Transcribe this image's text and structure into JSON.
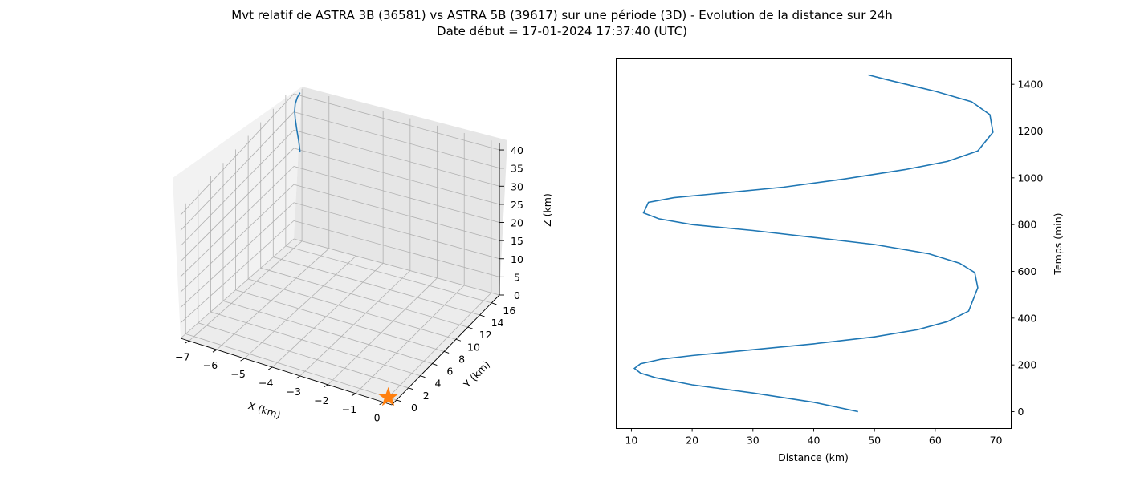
{
  "figure": {
    "title_line_1": "Mvt relatif de ASTRA 3B (36581) vs ASTRA 5B (39617) sur une période (3D) - Evolution de la distance sur 24h",
    "title_line_2": "Date début = 17-01-2024 17:37:40 (UTC)"
  },
  "colors": {
    "trajectory": "#1f77b4",
    "marker": "#ff7f0e"
  },
  "chart_data": [
    {
      "type": "line",
      "projection": "3d",
      "xlabel": "X (km)",
      "ylabel": "Y (km)",
      "zlabel": "Z (km)",
      "xlim": [
        -7.3,
        0.3
      ],
      "ylim": [
        -0.8,
        17.3
      ],
      "zlim": [
        0,
        42
      ],
      "xticks": [
        -7,
        -6,
        -5,
        -4,
        -3,
        -2,
        -1,
        0
      ],
      "yticks": [
        0,
        2,
        4,
        6,
        8,
        10,
        12,
        14,
        16
      ],
      "zticks": [
        0,
        5,
        10,
        15,
        20,
        25,
        30,
        35,
        40
      ],
      "grid": true,
      "series": [
        {
          "x": [
            -7.0,
            -7.05,
            -7.12,
            -7.18,
            -7.2,
            -7.18,
            -7.1,
            -7.0
          ],
          "y": [
            17.0,
            17.0,
            17.0,
            17.0,
            17.0,
            17.0,
            17.0,
            17.0
          ],
          "z": [
            25,
            28,
            31,
            34,
            36,
            38,
            40,
            41.5
          ]
        }
      ],
      "marker": {
        "symbol": "star",
        "x": 0,
        "y": 0,
        "z": 0
      }
    },
    {
      "type": "line",
      "xlabel": "Distance (km)",
      "ylabel": "Temps (min)",
      "xlim": [
        7.5,
        72.5
      ],
      "ylim": [
        -72,
        1512
      ],
      "xticks": [
        10,
        20,
        30,
        40,
        50,
        60,
        70
      ],
      "yticks": [
        0,
        200,
        400,
        600,
        800,
        1000,
        1200,
        1400
      ],
      "grid": false,
      "series": [
        {
          "distance": [
            47.3,
            40.0,
            30.0,
            20.0,
            14.0,
            11.5,
            10.5,
            11.5,
            15.0,
            20.0,
            30.0,
            40.0,
            50.0,
            57.0,
            62.0,
            65.5,
            67.0,
            66.5,
            64.0,
            59.0,
            50.0,
            40.0,
            30.0,
            20.0,
            14.5,
            12.0,
            12.8,
            17.0,
            25.0,
            35.0,
            45.0,
            55.0,
            62.0,
            67.0,
            69.5,
            69.0,
            66.0,
            60.0,
            52.0,
            49.0
          ],
          "time": [
            0,
            40,
            80,
            115,
            145,
            165,
            185,
            205,
            225,
            240,
            265,
            290,
            320,
            350,
            385,
            430,
            530,
            595,
            635,
            675,
            715,
            745,
            775,
            800,
            825,
            850,
            895,
            915,
            935,
            960,
            995,
            1035,
            1070,
            1115,
            1195,
            1270,
            1325,
            1370,
            1420,
            1440
          ]
        }
      ]
    }
  ]
}
